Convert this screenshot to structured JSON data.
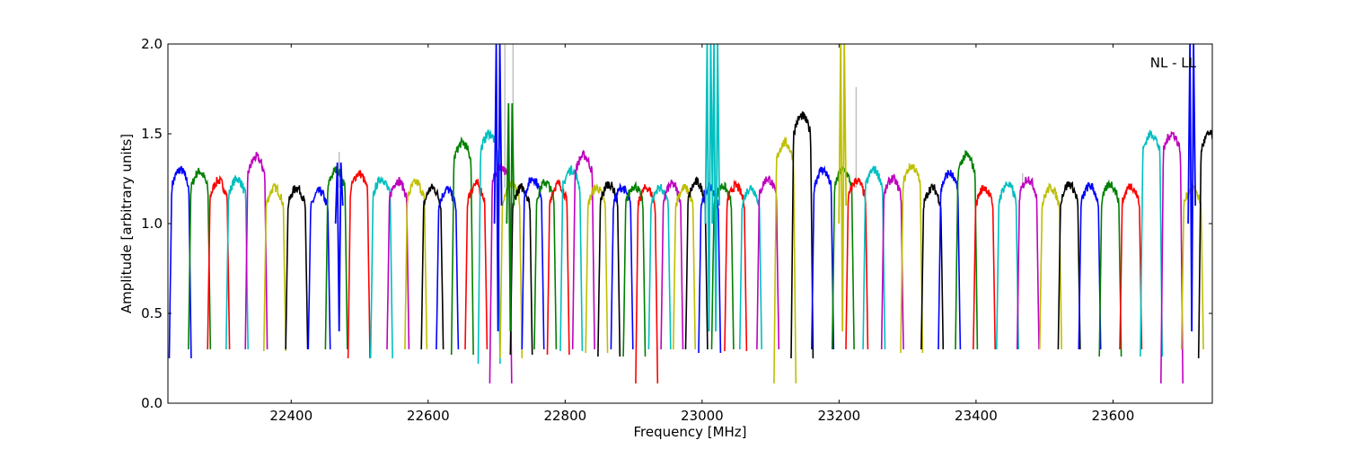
{
  "chart_data": {
    "type": "line",
    "title": "",
    "annotation": "NL - LL",
    "xlabel": "Frequency [MHz]",
    "ylabel": "Amplitude [arbitrary units]",
    "xlim": [
      22220,
      23745
    ],
    "ylim": [
      0.0,
      2.0
    ],
    "xticks": [
      22400,
      22600,
      22800,
      23000,
      23200,
      23400,
      23600
    ],
    "xtick_labels": [
      "22400",
      "22600",
      "22800",
      "23000",
      "23200",
      "23400",
      "23600"
    ],
    "yticks": [
      0.0,
      0.5,
      1.0,
      1.5,
      2.0
    ],
    "ytick_labels": [
      "0.0",
      "0.5",
      "1.0",
      "1.5",
      "2.0"
    ],
    "grid": false,
    "legend": "none",
    "series_colors": [
      "#0000ff",
      "#008000",
      "#ff0000",
      "#00bfbf",
      "#bf00bf",
      "#bfbf00",
      "#000000"
    ],
    "band_width_mhz": 32,
    "band_starts_mhz": [
      22222,
      22250,
      22278,
      22305,
      22333,
      22360,
      22392,
      22425,
      22450,
      22483,
      22516,
      22540,
      22566,
      22590,
      22612,
      22634,
      22654,
      22673,
      22690,
      22705,
      22720,
      22737,
      22755,
      22774,
      22793,
      22811,
      22830,
      22848,
      22867,
      22885,
      22903,
      22922,
      22940,
      22958,
      22976,
      22995,
      23014,
      23033,
      23055,
      23080,
      23105,
      23130,
      23160,
      23190,
      23210,
      23235,
      23262,
      23290,
      23320,
      23345,
      23370,
      23396,
      23430,
      23460,
      23493,
      23520,
      23550,
      23580,
      23610,
      23640,
      23670,
      23700,
      23725
    ],
    "band_peaks": [
      1.3,
      1.29,
      1.24,
      1.25,
      1.37,
      1.2,
      1.2,
      1.18,
      1.3,
      1.28,
      1.25,
      1.24,
      1.23,
      1.2,
      1.19,
      1.45,
      1.22,
      1.5,
      1.32,
      1.22,
      1.2,
      1.25,
      1.23,
      1.22,
      1.3,
      1.38,
      1.2,
      1.22,
      1.2,
      1.21,
      1.2,
      1.2,
      1.22,
      1.2,
      1.23,
      1.2,
      1.21,
      1.21,
      1.2,
      1.25,
      1.45,
      1.6,
      1.3,
      1.3,
      1.24,
      1.3,
      1.25,
      1.32,
      1.2,
      1.28,
      1.38,
      1.2,
      1.22,
      1.25,
      1.2,
      1.22,
      1.21,
      1.22,
      1.21,
      1.5,
      1.5,
      1.2,
      1.5
    ],
    "band_minima": [
      0.25,
      0.3,
      0.3,
      0.3,
      0.3,
      0.29,
      0.3,
      0.3,
      0.3,
      0.25,
      0.25,
      0.3,
      0.3,
      0.3,
      0.3,
      0.27,
      0.3,
      0.22,
      0.11,
      0.25,
      0.27,
      0.3,
      0.3,
      0.27,
      0.29,
      0.3,
      0.28,
      0.26,
      0.3,
      0.26,
      0.11,
      0.3,
      0.3,
      0.3,
      0.3,
      0.28,
      0.3,
      0.29,
      0.3,
      0.3,
      0.11,
      0.25,
      0.3,
      0.3,
      0.3,
      0.3,
      0.3,
      0.28,
      0.3,
      0.3,
      0.3,
      0.3,
      0.3,
      0.3,
      0.3,
      0.3,
      0.3,
      0.26,
      0.3,
      0.26,
      0.11,
      0.3,
      0.25
    ],
    "spikes": [
      {
        "x": 22470,
        "y": 1.34,
        "color": "#0000ff"
      },
      {
        "x": 22702,
        "y": 2.0,
        "color": "#0000ff"
      },
      {
        "x": 22720,
        "y": 1.67,
        "color": "#008000"
      },
      {
        "x": 23010,
        "y": 2.0,
        "color": "#00bfbf"
      },
      {
        "x": 23020,
        "y": 2.0,
        "color": "#00bfbf"
      },
      {
        "x": 23205,
        "y": 2.0,
        "color": "#bfbf00"
      },
      {
        "x": 23715,
        "y": 2.0,
        "color": "#0000ff"
      }
    ],
    "shadow_spikes": [
      {
        "x": 22470,
        "y": 1.4
      },
      {
        "x": 22724,
        "y": 2.0
      },
      {
        "x": 22712,
        "y": 2.0
      },
      {
        "x": 23225,
        "y": 1.76
      },
      {
        "x": 23468,
        "y": 1.28
      }
    ]
  }
}
